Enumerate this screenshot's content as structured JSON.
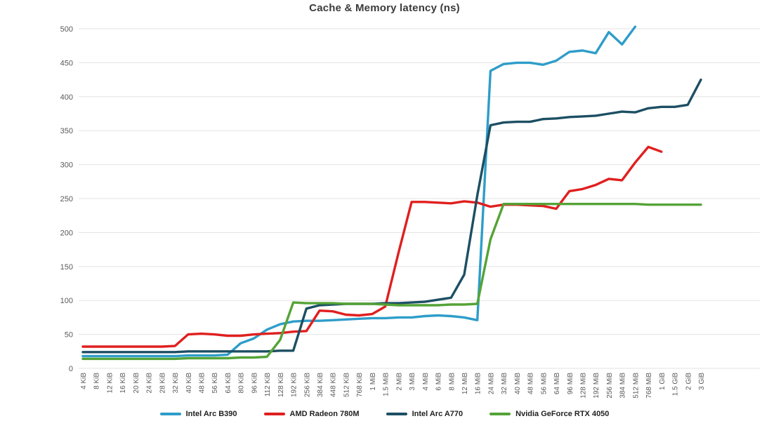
{
  "chart_data": {
    "type": "line",
    "title": "Cache & Memory latency (ns)",
    "xlabel": "",
    "ylabel": "",
    "ylim": [
      0,
      500
    ],
    "yticks": [
      0,
      50,
      100,
      150,
      200,
      250,
      300,
      350,
      400,
      450,
      500
    ],
    "grid": "horizontal",
    "legend_position": "bottom",
    "x_label_rotation": -90,
    "categories": [
      "4 KiB",
      "8 KiB",
      "12 KiB",
      "16 KiB",
      "20 KiB",
      "24 KiB",
      "28 KiB",
      "32 KiB",
      "40 KiB",
      "48 KiB",
      "56 KiB",
      "64 KiB",
      "80 KiB",
      "96 KiB",
      "112 KiB",
      "128 KiB",
      "192 KiB",
      "256 KiB",
      "384 KiB",
      "448 KiB",
      "512 KiB",
      "768 KiB",
      "1 MiB",
      "1.5 MiB",
      "2 MiB",
      "3 MiB",
      "4 MiB",
      "6 MiB",
      "8 MiB",
      "12 MiB",
      "16 MiB",
      "24 MiB",
      "32 MiB",
      "40 MiB",
      "48 MiB",
      "56 MiB",
      "64 MiB",
      "96 MiB",
      "128 MiB",
      "192 MiB",
      "256 MiB",
      "384 MiB",
      "512 MiB",
      "768 MiB",
      "1 GiB",
      "1.5 GiB",
      "2 GiB",
      "3 GiB"
    ],
    "series": [
      {
        "name": "Intel Arc B390",
        "color": "#2e9dc9",
        "values": [
          18,
          18,
          18,
          18,
          18,
          18,
          18,
          18,
          19,
          19,
          19,
          20,
          37,
          44,
          57,
          65,
          69,
          70,
          70,
          71,
          72,
          73,
          74,
          74,
          75,
          75,
          77,
          78,
          77,
          75,
          71,
          438,
          448,
          450,
          450,
          447,
          453,
          466,
          468,
          464,
          495,
          477,
          503,
          null,
          null,
          null,
          null,
          null
        ]
      },
      {
        "name": "AMD Radeon 780M",
        "color": "#e01f1f",
        "values": [
          32,
          32,
          32,
          32,
          32,
          32,
          32,
          33,
          50,
          51,
          50,
          48,
          48,
          50,
          51,
          52,
          54,
          55,
          85,
          84,
          79,
          78,
          80,
          91,
          170,
          245,
          245,
          244,
          243,
          246,
          244,
          238,
          241,
          241,
          240,
          239,
          235,
          261,
          264,
          270,
          279,
          277,
          303,
          326,
          319,
          null,
          null,
          null
        ]
      },
      {
        "name": "Intel Arc A770",
        "color": "#1c4f63",
        "values": [
          24,
          24,
          24,
          24,
          24,
          24,
          24,
          24,
          25,
          25,
          25,
          25,
          25,
          25,
          25,
          26,
          26,
          88,
          93,
          94,
          95,
          95,
          95,
          96,
          96,
          97,
          98,
          101,
          104,
          138,
          255,
          358,
          362,
          363,
          363,
          367,
          368,
          370,
          371,
          372,
          375,
          378,
          377,
          383,
          385,
          385,
          388,
          425
        ]
      },
      {
        "name": "Nvidia GeForce RTX 4050",
        "color": "#54a337",
        "values": [
          14,
          14,
          14,
          14,
          14,
          14,
          14,
          14,
          15,
          15,
          15,
          15,
          16,
          16,
          17,
          42,
          97,
          96,
          96,
          96,
          95,
          95,
          95,
          94,
          93,
          93,
          93,
          93,
          94,
          94,
          95,
          190,
          242,
          242,
          242,
          242,
          242,
          242,
          242,
          242,
          242,
          242,
          242,
          241,
          241,
          241,
          241,
          241
        ]
      }
    ]
  }
}
